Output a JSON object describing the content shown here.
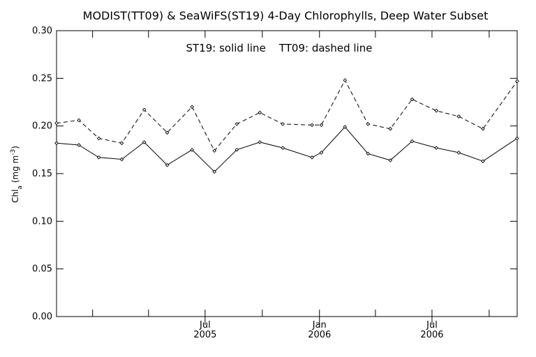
{
  "chart_data": {
    "type": "line",
    "title": "MODIST(TT09) & SeaWiFS(ST19) 4-Day Chlorophylls, Deep Water Subset",
    "annotation": "ST19: solid line    TT09: dashed line",
    "ylabel": {
      "main": "Chl",
      "sub": "a",
      "mid": " (mg m",
      "sup": "-3",
      "end": ")"
    },
    "ylim": [
      0,
      0.3
    ],
    "yticks": [
      "0.00",
      "0.05",
      "0.10",
      "0.15",
      "0.20",
      "0.25",
      "0.30"
    ],
    "xlim": [
      "2004-11-04",
      "2006-11-15"
    ],
    "xtick_labels": [
      {
        "date": "2005-07-01",
        "month": "Jul",
        "year": "2005"
      },
      {
        "date": "2006-01-01",
        "month": "Jan",
        "year": "2006"
      },
      {
        "date": "2006-07-01",
        "month": "Jul",
        "year": "2006"
      }
    ],
    "minor_ticks": [
      "2005-01-01",
      "2005-04-01",
      "2005-10-01",
      "2006-04-01",
      "2006-10-01"
    ],
    "x": [
      "2004-11-04",
      "2004-12-10",
      "2005-01-11",
      "2005-02-17",
      "2005-03-25",
      "2005-05-01",
      "2005-06-10",
      "2005-07-16",
      "2005-08-21",
      "2005-09-27",
      "2005-11-03",
      "2005-12-20",
      "2006-01-04",
      "2006-02-11",
      "2006-03-20",
      "2006-04-25",
      "2006-05-30",
      "2006-07-08",
      "2006-08-13",
      "2006-09-21",
      "2006-11-15"
    ],
    "series": [
      {
        "name": "ST19",
        "style": "solid",
        "values": [
          0.182,
          0.18,
          0.167,
          0.165,
          0.183,
          0.159,
          0.175,
          0.152,
          0.175,
          0.183,
          0.177,
          0.167,
          0.172,
          0.199,
          0.171,
          0.164,
          0.184,
          0.177,
          0.172,
          0.163,
          0.187
        ]
      },
      {
        "name": "TT09",
        "style": "dashed",
        "values": [
          0.203,
          0.206,
          0.187,
          0.182,
          0.217,
          0.193,
          0.22,
          0.174,
          0.202,
          0.214,
          0.202,
          0.201,
          0.201,
          0.248,
          0.202,
          0.197,
          0.228,
          0.216,
          0.21,
          0.197,
          0.247
        ]
      }
    ],
    "line_color": "#000000",
    "background": "#ffffff",
    "grid": false,
    "legend": "none"
  }
}
